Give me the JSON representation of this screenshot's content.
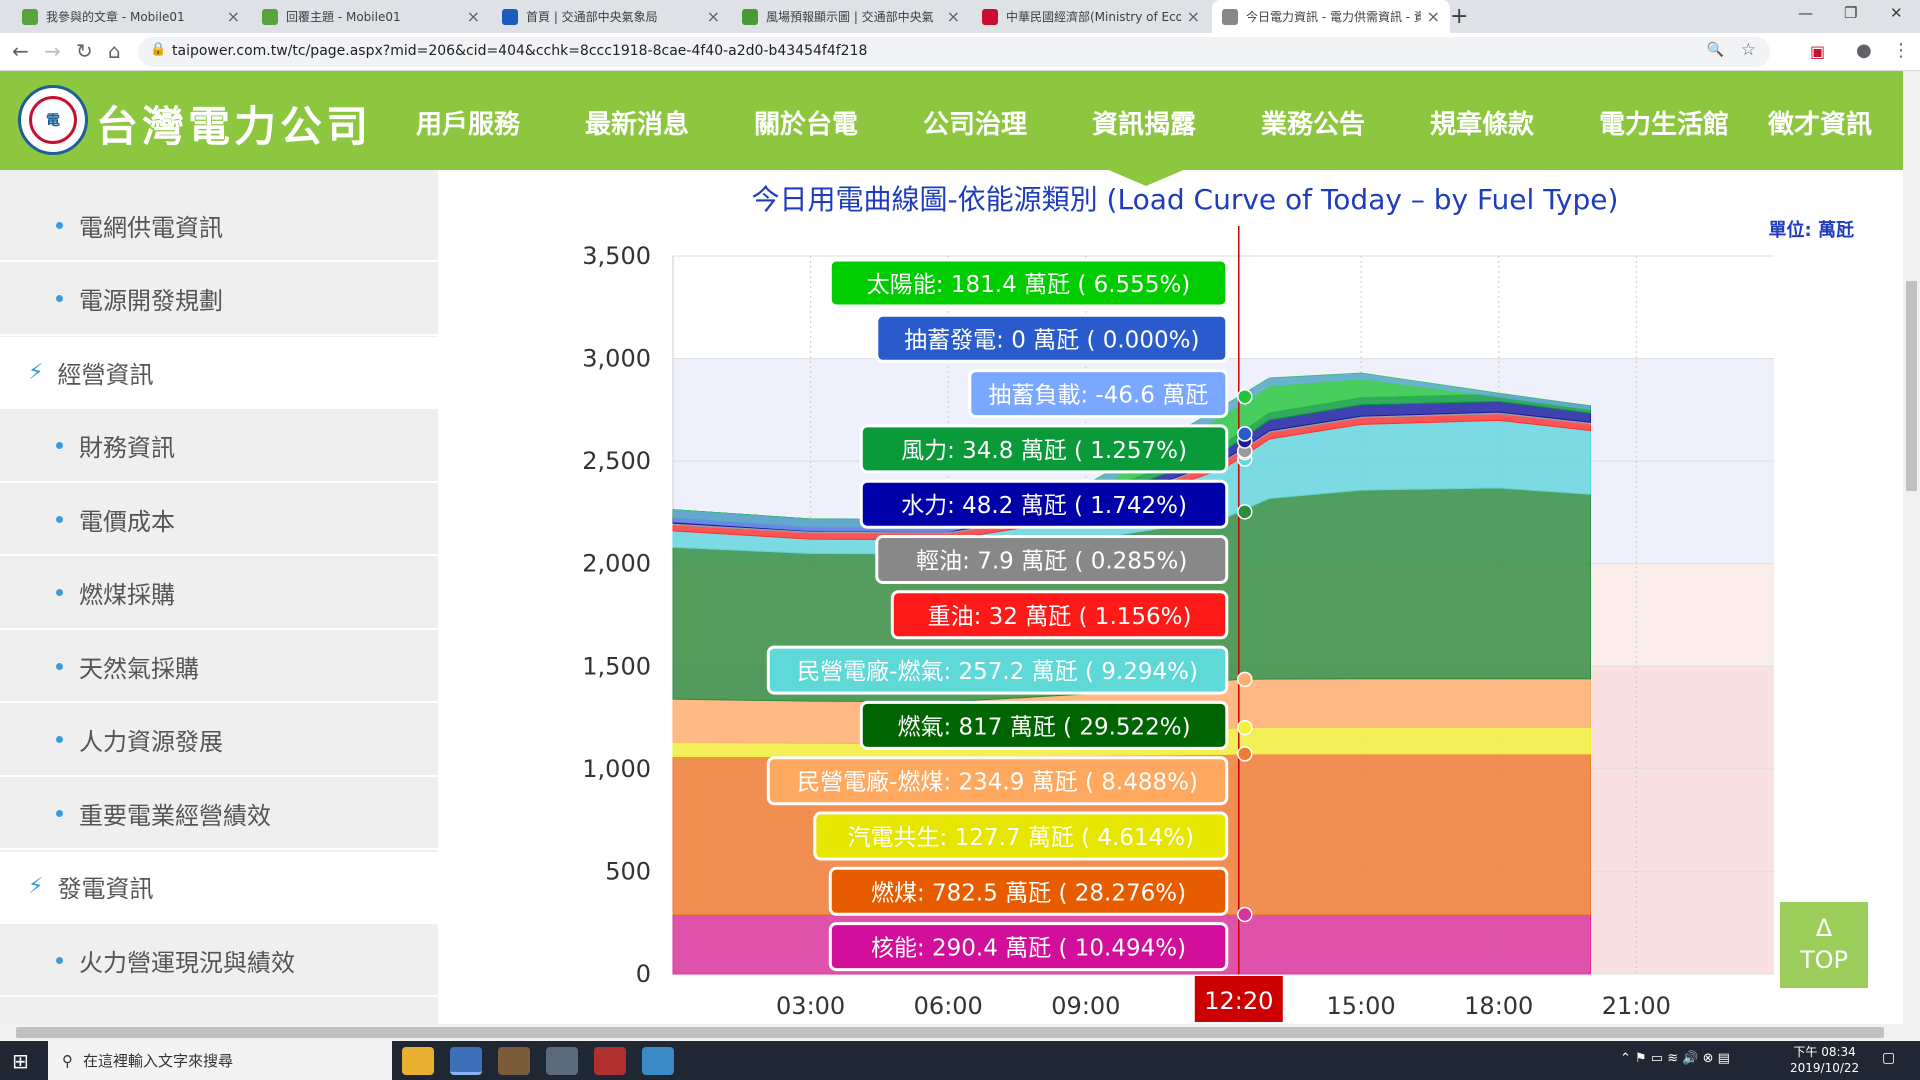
{
  "browser": {
    "tabs": [
      {
        "title": "我參與的文章 - Mobile01",
        "color": "#5aa33c"
      },
      {
        "title": "回覆主題 - Mobile01",
        "color": "#5aa33c"
      },
      {
        "title": "首頁 | 交通部中央氣象局",
        "color": "#1e5bb8"
      },
      {
        "title": "風場預報顯示圖 | 交通部中央氣",
        "color": "#4a9a3a"
      },
      {
        "title": "中華民國經濟部(Ministry of Eco",
        "color": "#c8102e"
      },
      {
        "title": "今日電力資訊 - 電力供需資訊 - 資",
        "color": "#888888"
      }
    ],
    "url": "taipower.com.tw/tc/page.aspx?mid=206&cid=404&cchk=8ccc1918-8cae-4f40-a2d0-b43454f4f218"
  },
  "site": {
    "name": "台灣電力公司",
    "menu": [
      "用戶服務",
      "最新消息",
      "關於台電",
      "公司治理",
      "資訊揭露",
      "業務公告",
      "規章條款",
      "電力生活館",
      "徵才資訊"
    ]
  },
  "sidebar": [
    {
      "label": "電網供電資訊",
      "kind": "sub"
    },
    {
      "label": "電源開發規劃",
      "kind": "sub"
    },
    {
      "label": "經營資訊",
      "kind": "cat"
    },
    {
      "label": "財務資訊",
      "kind": "sub"
    },
    {
      "label": "電價成本",
      "kind": "sub"
    },
    {
      "label": "燃煤採購",
      "kind": "sub"
    },
    {
      "label": "天然氣採購",
      "kind": "sub"
    },
    {
      "label": "人力資源發展",
      "kind": "sub"
    },
    {
      "label": "重要電業經營績效",
      "kind": "sub"
    },
    {
      "label": "發電資訊",
      "kind": "cat"
    },
    {
      "label": "火力營運現況與績效",
      "kind": "sub"
    }
  ],
  "top_button": {
    "arrow": "Δ",
    "label": "TOP"
  },
  "taskbar": {
    "search_placeholder": "在這裡輸入文字來搜尋",
    "time": "下午 08:34",
    "date": "2019/10/22"
  },
  "chart_data": {
    "type": "area",
    "title": "今日用電曲線圖-依能源類別 (Load Curve of Today – by Fuel Type)",
    "unit": "單位: 萬瓩",
    "x_ticks": [
      "03:00",
      "06:00",
      "09:00",
      "12:20",
      "15:00",
      "18:00",
      "21:00"
    ],
    "x": [
      "00:00",
      "03:00",
      "06:00",
      "09:00",
      "12:00",
      "12:20",
      "13:00",
      "15:00",
      "18:00",
      "20:00"
    ],
    "ylim": [
      0,
      3500
    ],
    "y_ticks": [
      0,
      500,
      1000,
      1500,
      2000,
      2500,
      3000,
      3500
    ],
    "cursor_time": "12:20",
    "series": [
      {
        "name": "核能",
        "color": "#d9329e",
        "values": [
          290,
          290,
          290,
          290,
          290,
          290,
          290,
          290,
          290,
          290
        ]
      },
      {
        "name": "燃煤",
        "color": "#ee7d31",
        "values": [
          770,
          770,
          770,
          775,
          780,
          783,
          783,
          783,
          783,
          783
        ]
      },
      {
        "name": "汽電共生",
        "color": "#f2f23a",
        "values": [
          70,
          65,
          62,
          85,
          125,
          128,
          130,
          130,
          130,
          130
        ]
      },
      {
        "name": "民營電廠-燃煤",
        "color": "#ffb070",
        "values": [
          210,
          205,
          205,
          215,
          235,
          235,
          235,
          236,
          236,
          236
        ]
      },
      {
        "name": "燃氣",
        "color": "#2e8b3e",
        "values": [
          740,
          720,
          720,
          750,
          790,
          817,
          880,
          920,
          930,
          900
        ]
      },
      {
        "name": "民營電廠-燃氣",
        "color": "#63d6dc",
        "values": [
          80,
          70,
          70,
          110,
          245,
          257,
          290,
          320,
          330,
          310
        ]
      },
      {
        "name": "重油",
        "color": "#ff3030",
        "values": [
          30,
          30,
          30,
          30,
          32,
          32,
          32,
          32,
          32,
          32
        ]
      },
      {
        "name": "輕油",
        "color": "#999999",
        "values": [
          8,
          8,
          8,
          8,
          8,
          8,
          8,
          8,
          8,
          8
        ]
      },
      {
        "name": "水力",
        "color": "#1a1aa0",
        "values": [
          25,
          20,
          20,
          25,
          45,
          48,
          52,
          55,
          52,
          45
        ]
      },
      {
        "name": "風力",
        "color": "#0a9a3a",
        "values": [
          40,
          40,
          38,
          36,
          35,
          35,
          35,
          35,
          35,
          35
        ]
      },
      {
        "name": "抽蓄負載",
        "color": "#7aa7ff",
        "values": [
          -60,
          -60,
          -60,
          -50,
          -47,
          -47,
          -40,
          -30,
          -20,
          -20
        ]
      },
      {
        "name": "抽蓄發電",
        "color": "#2a5bcc",
        "values": [
          0,
          0,
          0,
          0,
          0,
          0,
          0,
          0,
          0,
          0
        ]
      },
      {
        "name": "太陽能",
        "color": "#23c43a",
        "values": [
          0,
          0,
          0,
          60,
          185,
          181,
          170,
          120,
          5,
          0
        ]
      }
    ],
    "tooltips": [
      {
        "text": "太陽能: 181.4 萬瓩 ( 6.555%)",
        "color": "#00cc00"
      },
      {
        "text": "抽蓄發電: 0 萬瓩 ( 0.000%)",
        "color": "#2a5bcc"
      },
      {
        "text": "抽蓄負載: -46.6 萬瓩",
        "color": "#7aa7ff"
      },
      {
        "text": "風力: 34.8 萬瓩 ( 1.257%)",
        "color": "#0a9a3a"
      },
      {
        "text": "水力: 48.2 萬瓩 ( 1.742%)",
        "color": "#0000a8"
      },
      {
        "text": "輕油: 7.9 萬瓩 ( 0.285%)",
        "color": "#888888"
      },
      {
        "text": "重油: 32 萬瓩 ( 1.156%)",
        "color": "#ff1a1a"
      },
      {
        "text": "民營電廠-燃氣: 257.2 萬瓩 ( 9.294%)",
        "color": "#5fd8d8"
      },
      {
        "text": "燃氣: 817 萬瓩 ( 29.522%)",
        "color": "#006400"
      },
      {
        "text": "民營電廠-燃煤: 234.9 萬瓩 ( 8.488%)",
        "color": "#ffa860"
      },
      {
        "text": "汽電共生: 127.7 萬瓩 ( 4.614%)",
        "color": "#e6e600"
      },
      {
        "text": "燃煤: 782.5 萬瓩 ( 28.276%)",
        "color": "#e85c00"
      },
      {
        "text": "核能: 290.4 萬瓩 ( 10.494%)",
        "color": "#d20f9a"
      }
    ]
  }
}
